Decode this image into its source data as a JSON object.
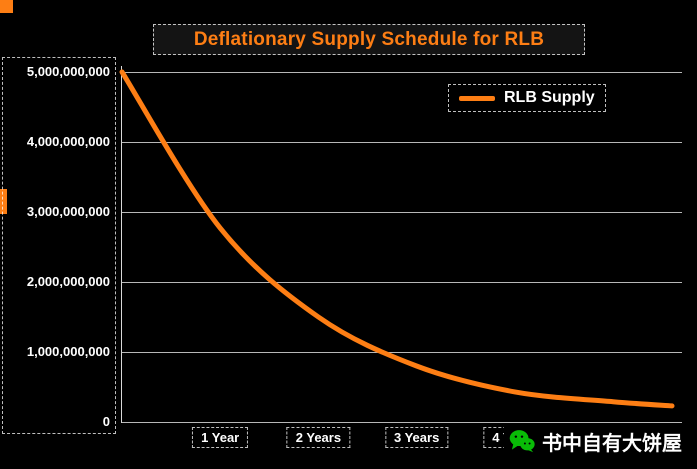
{
  "accent": "#fd7e14",
  "title": "Deflationary Supply Schedule for RLB",
  "legend": {
    "label": "RLB Supply"
  },
  "watermark": {
    "icon": "wechat-icon",
    "icon_color": "#09BB07",
    "text": "书中自有大饼屋"
  },
  "chart_data": {
    "type": "line",
    "title": "Deflationary Supply Schedule for RLB",
    "xlabel": "",
    "ylabel": "",
    "x_tick_labels": [
      "1 Year",
      "2 Years",
      "3 Years",
      "4 Years"
    ],
    "x_tick_positions": [
      1,
      2,
      3,
      4
    ],
    "y_ticks": [
      0,
      1000000000,
      2000000000,
      3000000000,
      4000000000,
      5000000000
    ],
    "y_tick_labels": [
      "0",
      "1,000,000,000",
      "2,000,000,000",
      "3,000,000,000",
      "4,000,000,000",
      "5,000,000,000"
    ],
    "xlim": [
      0,
      5.6
    ],
    "ylim": [
      0,
      5000000000
    ],
    "grid": "horizontal",
    "legend_position": "top-right",
    "background": "#000000",
    "series": [
      {
        "name": "RLB Supply",
        "color": "#fd7e14",
        "x": [
          0,
          1,
          2,
          3,
          4,
          5,
          5.6
        ],
        "values": [
          5000000000,
          2770000000,
          1500000000,
          800000000,
          430000000,
          290000000,
          230000000
        ]
      }
    ]
  }
}
